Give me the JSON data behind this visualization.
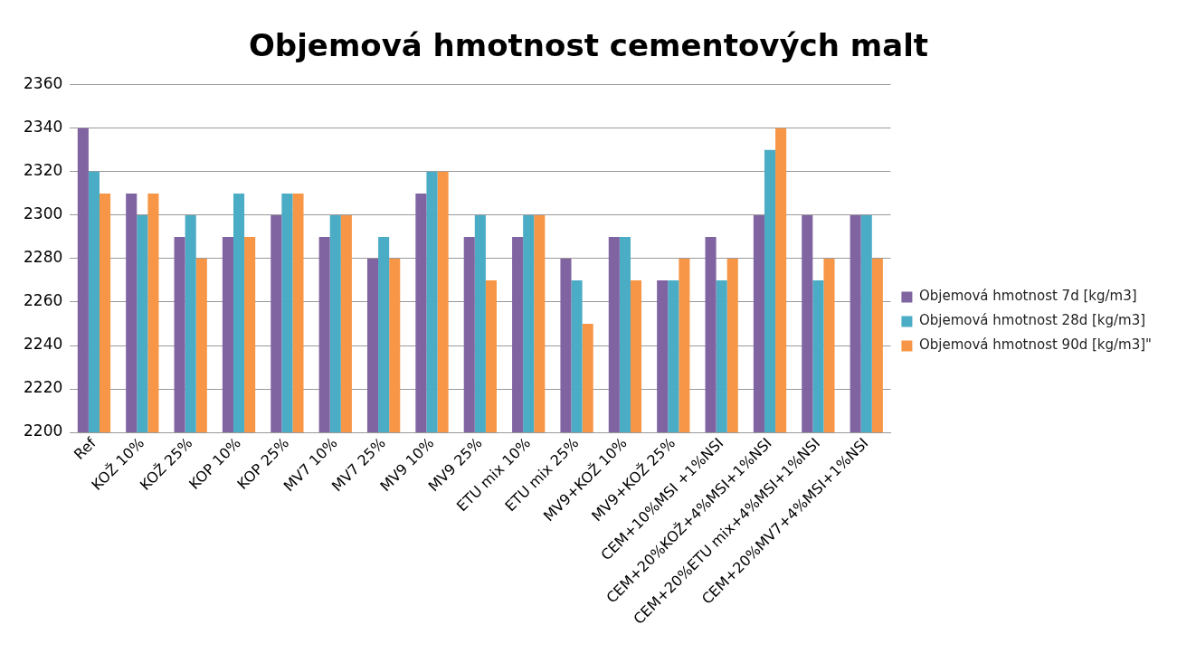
{
  "chart_data": {
    "type": "bar",
    "title": "Objemová hmotnost cementových malt",
    "categories": [
      "Ref",
      "KOŽ 10%",
      "KOŽ 25%",
      "KOP 10%",
      "KOP 25%",
      "MV7 10%",
      "MV7 25%",
      "MV9 10%",
      "MV9 25%",
      "ETU mix 10%",
      "ETU mix 25%",
      "MV9+KOŽ 10%",
      "MV9+KOŽ 25%",
      "CEM+10%MSI +1%NSI",
      "CEM+20%KOŽ+4%MSI+1%NSI",
      "CEM+20%ETU mix+4%MSI+1%NSI",
      "CEM+20%MV7+4%MSI+1%NSI"
    ],
    "series": [
      {
        "name": "Objemová hmotnost 7d [kg/m3]",
        "color": "#8064a2",
        "values": [
          2340,
          2310,
          2290,
          2290,
          2300,
          2290,
          2280,
          2310,
          2290,
          2290,
          2280,
          2290,
          2270,
          2290,
          2300,
          2300,
          2300
        ]
      },
      {
        "name": "Objemová hmotnost 28d [kg/m3]",
        "color": "#4bacc6",
        "values": [
          2320,
          2300,
          2300,
          2310,
          2310,
          2300,
          2290,
          2320,
          2300,
          2300,
          2270,
          2290,
          2270,
          2270,
          2330,
          2270,
          2300
        ]
      },
      {
        "name": "Objemová hmotnost 90d [kg/m3]\"",
        "color": "#f79646",
        "values": [
          2310,
          2310,
          2280,
          2290,
          2310,
          2300,
          2280,
          2320,
          2270,
          2300,
          2250,
          2270,
          2280,
          2280,
          2340,
          2280,
          2280
        ]
      }
    ],
    "ylim": [
      2200,
      2360
    ],
    "yticks": [
      2200,
      2220,
      2240,
      2260,
      2280,
      2300,
      2320,
      2340,
      2360
    ],
    "grid": "y",
    "legend": "right"
  }
}
